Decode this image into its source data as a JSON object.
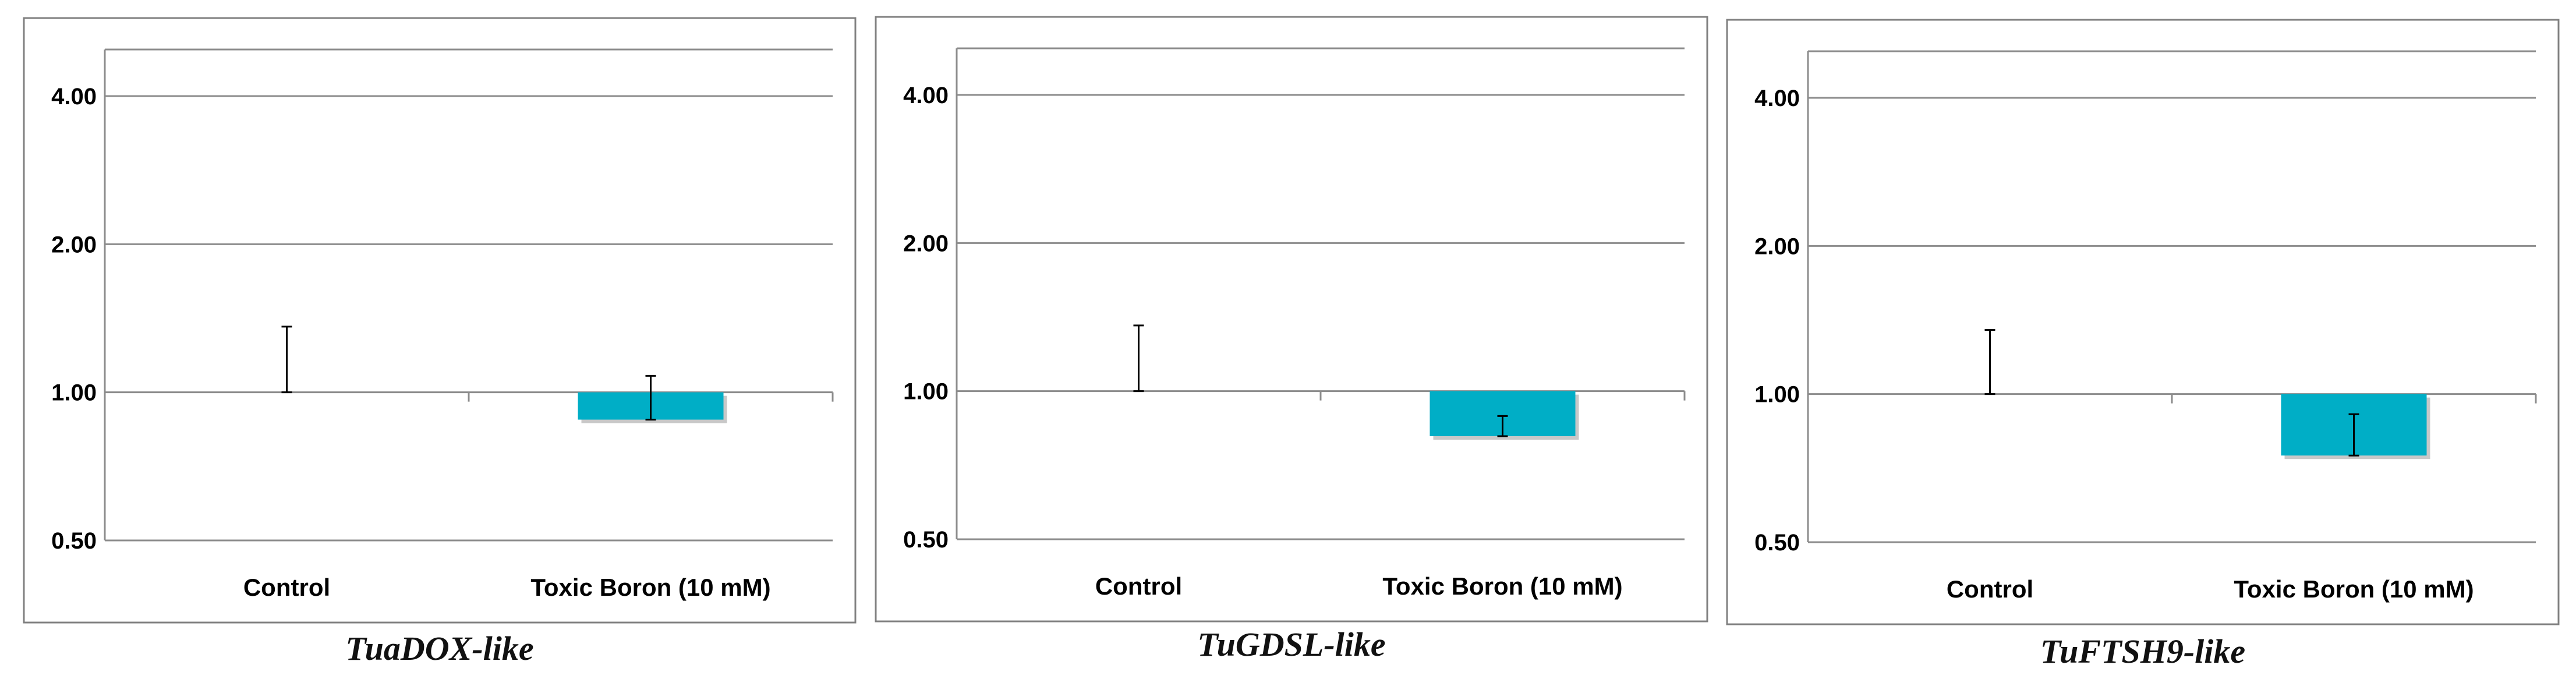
{
  "colors": {
    "bar": "#00AEC6",
    "frame": "#808080",
    "grid": "#8C8C8C",
    "axis_text": "#000000"
  },
  "chart_data": [
    {
      "type": "bar",
      "title": "TuaDOX-like",
      "y_scale": "log2",
      "ylim": [
        0.5,
        4
      ],
      "yticks": [
        0.5,
        1,
        2,
        4
      ],
      "ytick_labels": [
        "0.50",
        "1.00",
        "2.00",
        "4.00"
      ],
      "baseline": 1,
      "categories": [
        "Control",
        "Toxic Boron (10 mM)"
      ],
      "values": [
        1.0,
        0.88
      ],
      "error_upper": [
        1.36,
        1.08
      ],
      "error_lower": [
        1.0,
        0.88
      ],
      "grid": true
    },
    {
      "type": "bar",
      "title": "TuGDSL-like",
      "y_scale": "log2",
      "ylim": [
        0.5,
        4
      ],
      "yticks": [
        0.5,
        1,
        2,
        4
      ],
      "ytick_labels": [
        "0.50",
        "1.00",
        "2.00",
        "4.00"
      ],
      "baseline": 1,
      "categories": [
        "Control",
        "Toxic Boron (10 mM)"
      ],
      "values": [
        1.0,
        0.81
      ],
      "error_upper": [
        1.36,
        0.89
      ],
      "error_lower": [
        1.0,
        0.81
      ],
      "grid": true
    },
    {
      "type": "bar",
      "title": "TuFTSH9-like",
      "y_scale": "log2",
      "ylim": [
        0.5,
        4
      ],
      "yticks": [
        0.5,
        1,
        2,
        4
      ],
      "ytick_labels": [
        "0.50",
        "1.00",
        "2.00",
        "4.00"
      ],
      "baseline": 1,
      "categories": [
        "Control",
        "Toxic Boron (10 mM)"
      ],
      "values": [
        1.0,
        0.75
      ],
      "error_upper": [
        1.35,
        0.91
      ],
      "error_lower": [
        1.0,
        0.75
      ],
      "grid": true
    }
  ]
}
